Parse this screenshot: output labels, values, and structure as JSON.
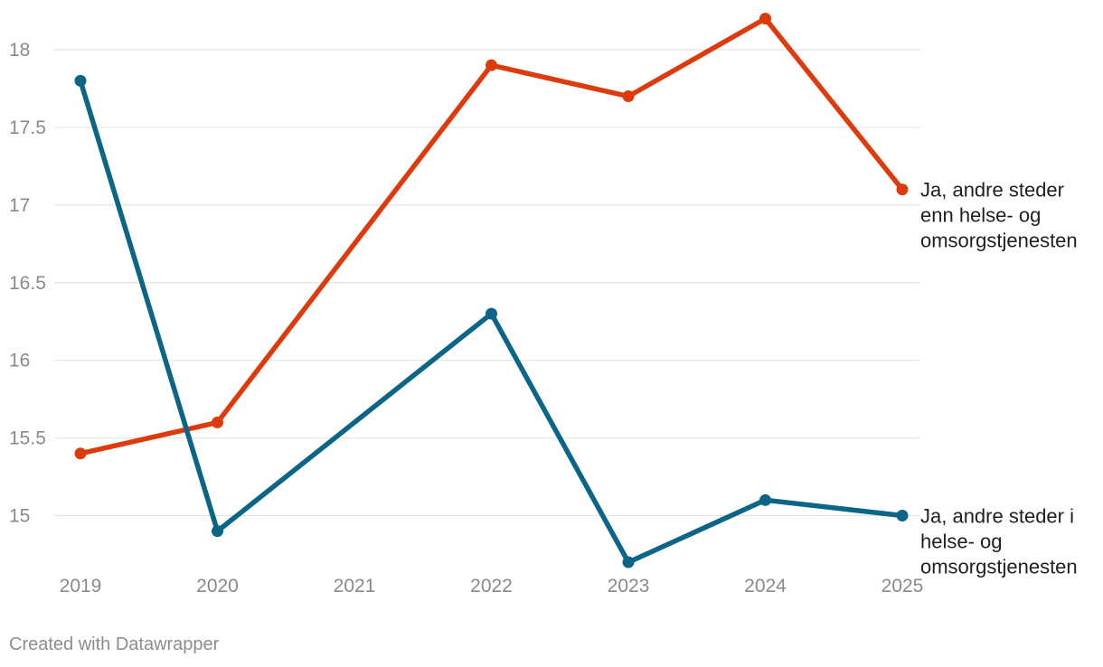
{
  "chart_data": {
    "type": "line",
    "title": "",
    "xlabel": "",
    "ylabel": "",
    "x": [
      "2019",
      "2020",
      "2021",
      "2022",
      "2023",
      "2024",
      "2025"
    ],
    "y_ticks": [
      "15",
      "15.5",
      "16",
      "16.5",
      "17",
      "17.5",
      "18"
    ],
    "ylim": [
      14.6,
      18.3
    ],
    "grid": true,
    "series": [
      {
        "name": "Ja, andre steder enn helse- og omsorgstjenesten",
        "label_lines": [
          "Ja, andre steder",
          "enn helse- og",
          "omsorgstjenesten"
        ],
        "color": "#de3b0d",
        "values": [
          15.4,
          15.6,
          null,
          17.9,
          17.7,
          18.2,
          17.1
        ]
      },
      {
        "name": "Ja, andre steder i helse- og omsorgstjenesten",
        "label_lines": [
          "Ja, andre steder i",
          "helse- og",
          "omsorgstjenesten"
        ],
        "color": "#0b6587",
        "values": [
          17.8,
          14.9,
          null,
          16.3,
          14.7,
          15.1,
          15.0
        ]
      }
    ]
  },
  "footer": {
    "credit": "Created with Datawrapper"
  }
}
